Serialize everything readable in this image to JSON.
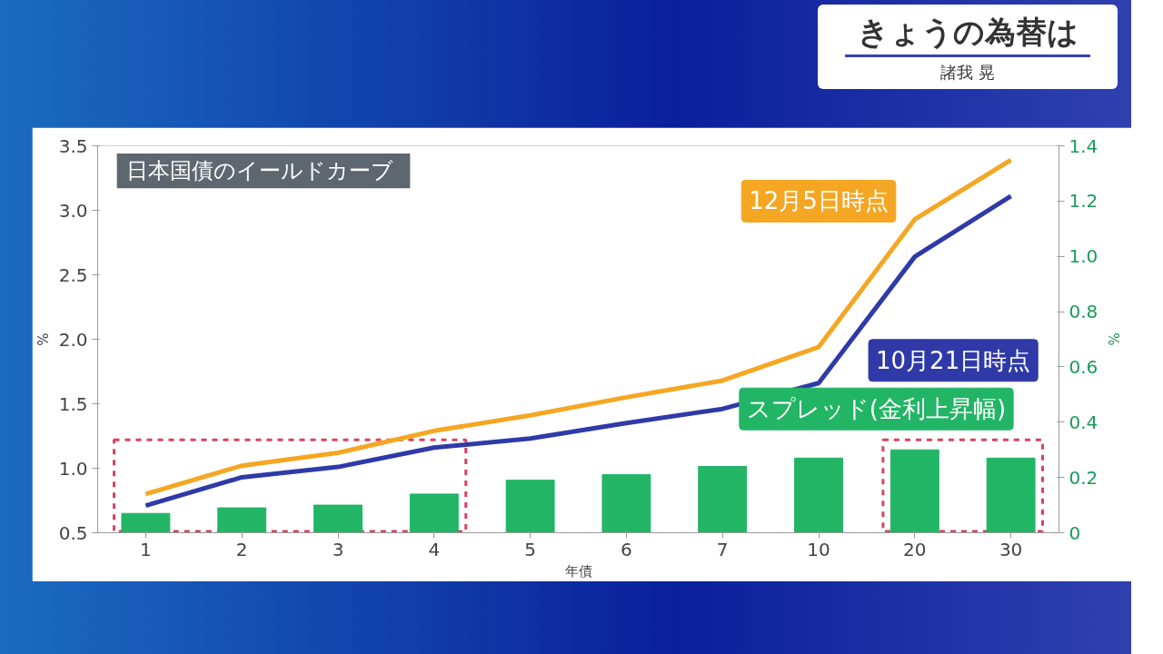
{
  "chart_data": {
    "type": "line",
    "title": "日本国債のイールドカーブ",
    "annotations": [
      "きょうの為替は",
      "諸我 晃"
    ],
    "categories": [
      "1",
      "2",
      "3",
      "4",
      "5",
      "6",
      "7",
      "10",
      "20",
      "30"
    ],
    "series": [
      {
        "name": "12月5日時点",
        "color": "#f5a623",
        "values": [
          0.8,
          1.02,
          1.12,
          1.29,
          1.41,
          1.55,
          1.68,
          1.94,
          2.93,
          3.39
        ]
      },
      {
        "name": "10月21日時点",
        "color": "#2f3aa8",
        "values": [
          0.71,
          0.93,
          1.01,
          1.16,
          1.23,
          1.35,
          1.46,
          1.66,
          2.64,
          3.11
        ]
      },
      {
        "name": "スプレッド(金利上昇幅)",
        "type": "bar",
        "axis": "y2",
        "color": "#22b566",
        "values": [
          0.07,
          0.09,
          0.1,
          0.14,
          0.19,
          0.21,
          0.24,
          0.27,
          0.3,
          0.27
        ]
      }
    ],
    "ylabel": "%",
    "y2label": "%",
    "xlabel": "年債",
    "ylim": [
      0.5,
      3.5
    ],
    "yticks": [
      0.5,
      {
        "value": 1,
        "label": "1.0"
      },
      1.5,
      {
        "value": 2,
        "label": "2.0"
      },
      2.5,
      {
        "value": 3,
        "label": "3.0"
      },
      3.5
    ],
    "y2lim": [
      0,
      1.4
    ],
    "y2ticks": [
      0,
      0.2,
      0.4,
      0.6,
      0.8,
      {
        "value": 1,
        "label": "1.0"
      },
      1.2,
      1.4
    ]
  }
}
